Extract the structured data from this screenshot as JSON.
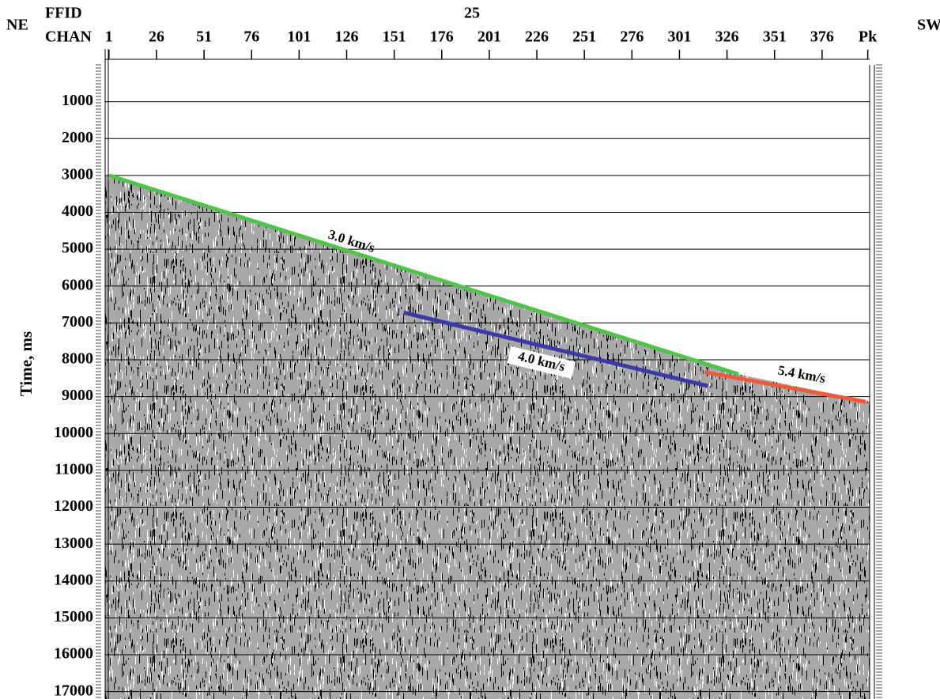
{
  "chart_data": {
    "type": "line",
    "corner_left": "NE",
    "corner_right": "SW",
    "ffid_label": "FFID",
    "chan_label": "CHAN",
    "ffid_value": "25",
    "y_label": "Time, ms",
    "xlim": [
      -1,
      401
    ],
    "xticks": [
      1,
      26,
      51,
      76,
      101,
      126,
      151,
      176,
      201,
      226,
      251,
      276,
      301,
      326,
      351,
      376,
      {
        "value": 400,
        "label": "Pk"
      }
    ],
    "ylim": [
      0,
      17200
    ],
    "yticks": [
      1000,
      2000,
      3000,
      4000,
      5000,
      6000,
      7000,
      8000,
      9000,
      10000,
      11000,
      12000,
      13000,
      14000,
      15000,
      16000,
      17000
    ],
    "grid": true,
    "series": [
      {
        "name": "3.0 km/s",
        "color": "#4fc34a",
        "x": [
          1,
          332
        ],
        "values": [
          3000,
          8390
        ]
      },
      {
        "name": "4.0 km/s",
        "color": "#3a3aa8",
        "x": [
          156,
          316
        ],
        "values": [
          6720,
          8710
        ]
      },
      {
        "name": "5.4 km/s",
        "color": "#ee5a3a",
        "x": [
          314,
          399
        ],
        "values": [
          8330,
          9140
        ]
      }
    ]
  }
}
